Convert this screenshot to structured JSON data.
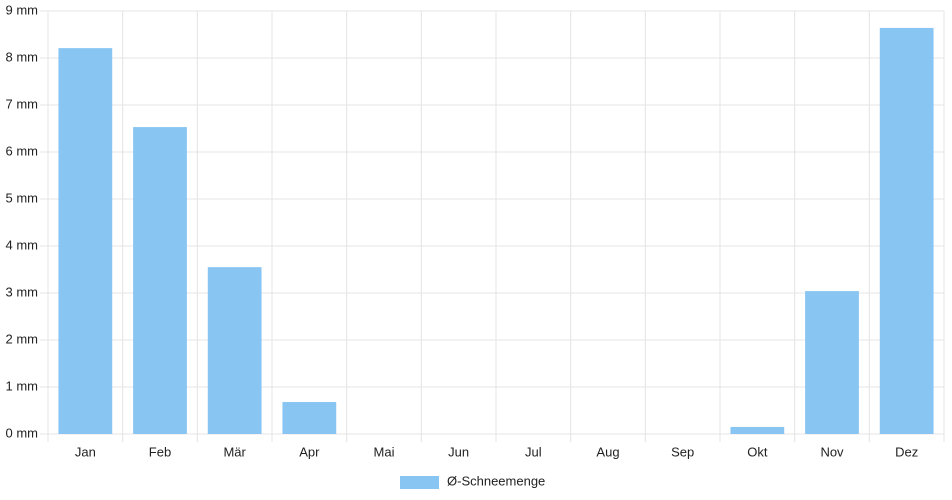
{
  "chart_data": {
    "type": "bar",
    "categories": [
      "Jan",
      "Feb",
      "Mär",
      "Apr",
      "Mai",
      "Jun",
      "Jul",
      "Aug",
      "Sep",
      "Okt",
      "Nov",
      "Dez"
    ],
    "series": [
      {
        "name": "Ø-Schneemenge",
        "color": "#88c5f2",
        "values": [
          8.21,
          6.53,
          3.55,
          0.68,
          0,
          0,
          0,
          0,
          0,
          0.15,
          3.04,
          8.64
        ]
      }
    ],
    "ylim": [
      0,
      9
    ],
    "yticks": [
      {
        "value": 0,
        "label": "0 mm"
      },
      {
        "value": 1,
        "label": "1 mm"
      },
      {
        "value": 2,
        "label": "2 mm"
      },
      {
        "value": 3,
        "label": "3 mm"
      },
      {
        "value": 4,
        "label": "4 mm"
      },
      {
        "value": 5,
        "label": "5 mm"
      },
      {
        "value": 6,
        "label": "6 mm"
      },
      {
        "value": 7,
        "label": "7 mm"
      },
      {
        "value": 8,
        "label": "8 mm"
      },
      {
        "value": 9,
        "label": "9 mm"
      }
    ],
    "grid": true,
    "legend": "bottom"
  }
}
